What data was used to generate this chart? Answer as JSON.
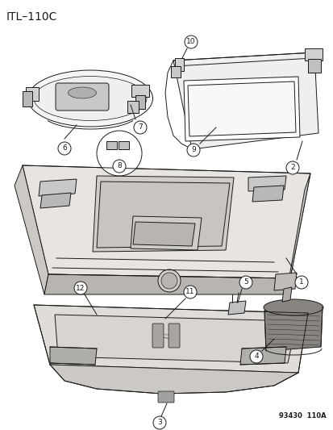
{
  "title": "ITL–110C",
  "footer": "93430  110A",
  "bg_color": "#ffffff",
  "lc": "#1a1a1a",
  "lw": 0.7,
  "title_fontsize": 10,
  "footer_fontsize": 6
}
